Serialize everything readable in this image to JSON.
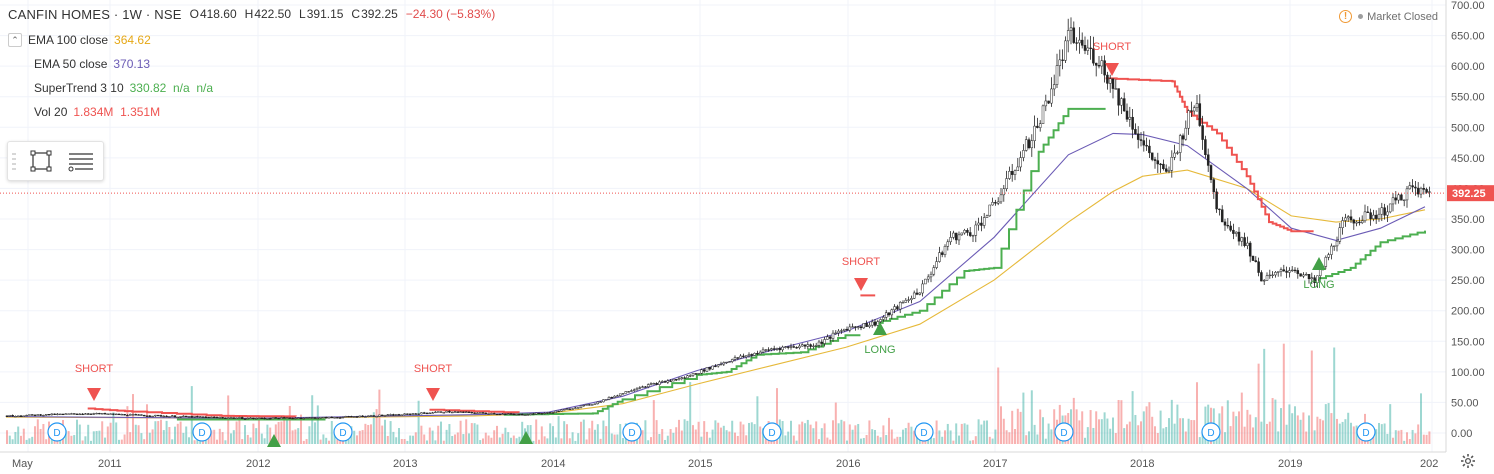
{
  "header": {
    "symbol": "CANFIN HOMES · 1W · NSE",
    "open_label": "O",
    "open": "418.60",
    "high_label": "H",
    "high": "422.50",
    "low_label": "L",
    "low": "391.15",
    "close_label": "C",
    "close": "392.25",
    "change": "−24.30 (−5.83%)"
  },
  "indicators": [
    {
      "name": "EMA 100 close",
      "value": "364.62",
      "color": "#e6a817"
    },
    {
      "name": "EMA 50 close",
      "value": "370.13",
      "color": "#6b5bb5"
    },
    {
      "name": "SuperTrend 3 10",
      "value": "330.82  n/a  n/a",
      "color": "#4caf50"
    },
    {
      "name": "Vol 20",
      "value": "1.834M  1.351M",
      "color": "#ef5350",
      "value2_color": "#f2a33a"
    }
  ],
  "market_status": "Market Closed",
  "price_axis": [
    "700.00",
    "650.00",
    "600.00",
    "550.00",
    "500.00",
    "450.00",
    "400.00",
    "350.00",
    "300.00",
    "250.00",
    "200.00",
    "150.00",
    "100.00",
    "50.00",
    "0.00"
  ],
  "last_price_tag": "392.25",
  "time_axis": [
    "May",
    "2011",
    "2012",
    "2013",
    "2014",
    "2015",
    "2016",
    "2017",
    "2018",
    "2019",
    "202"
  ],
  "signals": [
    {
      "type": "SHORT",
      "label": "SHORT"
    },
    {
      "type": "SHORT",
      "label": "SHORT"
    },
    {
      "type": "SHORT",
      "label": "SHORT"
    },
    {
      "type": "SHORT",
      "label": "SHORT"
    },
    {
      "type": "LONG",
      "label": "LONG"
    },
    {
      "type": "LONG",
      "label": "LONG"
    }
  ],
  "dividend_badge": "D",
  "chart_data": {
    "type": "candlestick",
    "y_range": [
      0,
      700
    ],
    "last_close": 392.25,
    "price_path": [
      [
        2010.35,
        28
      ],
      [
        2010.9,
        32
      ],
      [
        2011.5,
        27
      ],
      [
        2012.0,
        24
      ],
      [
        2012.5,
        25
      ],
      [
        2013.0,
        30
      ],
      [
        2013.3,
        35
      ],
      [
        2013.8,
        30
      ],
      [
        2014.0,
        33
      ],
      [
        2014.3,
        48
      ],
      [
        2014.6,
        75
      ],
      [
        2014.9,
        90
      ],
      [
        2015.2,
        118
      ],
      [
        2015.5,
        138
      ],
      [
        2015.8,
        145
      ],
      [
        2016.0,
        172
      ],
      [
        2016.2,
        180
      ],
      [
        2016.5,
        235
      ],
      [
        2016.7,
        320
      ],
      [
        2016.85,
        330
      ],
      [
        2017.0,
        375
      ],
      [
        2017.3,
        510
      ],
      [
        2017.5,
        650
      ],
      [
        2017.7,
        610
      ],
      [
        2017.85,
        540
      ],
      [
        2018.0,
        470
      ],
      [
        2018.15,
        420
      ],
      [
        2018.35,
        545
      ],
      [
        2018.5,
        360
      ],
      [
        2018.7,
        305
      ],
      [
        2018.8,
        250
      ],
      [
        2019.0,
        270
      ],
      [
        2019.15,
        245
      ],
      [
        2019.35,
        345
      ],
      [
        2019.6,
        360
      ],
      [
        2019.8,
        400
      ],
      [
        2019.9,
        392
      ]
    ],
    "ema50_path": [
      [
        2010.35,
        27
      ],
      [
        2012.0,
        24
      ],
      [
        2013.5,
        30
      ],
      [
        2014.0,
        34
      ],
      [
        2014.5,
        60
      ],
      [
        2015.0,
        102
      ],
      [
        2015.5,
        135
      ],
      [
        2016.0,
        166
      ],
      [
        2016.5,
        215
      ],
      [
        2017.0,
        320
      ],
      [
        2017.5,
        455
      ],
      [
        2017.8,
        490
      ],
      [
        2018.0,
        488
      ],
      [
        2018.3,
        470
      ],
      [
        2018.7,
        400
      ],
      [
        2019.0,
        335
      ],
      [
        2019.3,
        315
      ],
      [
        2019.6,
        335
      ],
      [
        2019.9,
        370
      ]
    ],
    "ema100_path": [
      [
        2010.35,
        26
      ],
      [
        2012.0,
        24
      ],
      [
        2013.5,
        28
      ],
      [
        2014.0,
        32
      ],
      [
        2014.5,
        48
      ],
      [
        2015.0,
        80
      ],
      [
        2015.5,
        110
      ],
      [
        2016.0,
        140
      ],
      [
        2016.5,
        178
      ],
      [
        2017.0,
        250
      ],
      [
        2017.5,
        345
      ],
      [
        2017.8,
        395
      ],
      [
        2018.0,
        420
      ],
      [
        2018.3,
        430
      ],
      [
        2018.7,
        400
      ],
      [
        2019.0,
        355
      ],
      [
        2019.3,
        345
      ],
      [
        2019.6,
        350
      ],
      [
        2019.9,
        365
      ]
    ],
    "supertrend_up_segments": [
      [
        [
          2011.5,
          22
        ],
        [
          2012.5,
          22
        ]
      ],
      [
        [
          2013.7,
          30
        ],
        [
          2014.3,
          32
        ],
        [
          2014.5,
          55
        ],
        [
          2015.0,
          95
        ],
        [
          2015.2,
          100
        ],
        [
          2015.4,
          128
        ],
        [
          2015.7,
          132
        ],
        [
          2016.0,
          160
        ],
        [
          2016.1,
          160
        ]
      ],
      [
        [
          2016.2,
          180
        ],
        [
          2016.5,
          200
        ],
        [
          2016.8,
          265
        ],
        [
          2017.0,
          270
        ],
        [
          2017.3,
          460
        ],
        [
          2017.5,
          530
        ],
        [
          2017.75,
          530
        ]
      ],
      [
        [
          2019.15,
          250
        ],
        [
          2019.4,
          270
        ],
        [
          2019.6,
          312
        ],
        [
          2019.9,
          331
        ]
      ]
    ],
    "supertrend_down_segments": [
      [
        [
          2010.9,
          40
        ],
        [
          2011.2,
          35
        ],
        [
          2011.8,
          28
        ],
        [
          2012.3,
          27
        ]
      ],
      [
        [
          2013.2,
          38
        ],
        [
          2013.8,
          33
        ]
      ],
      [
        [
          2016.1,
          225
        ],
        [
          2016.2,
          225
        ]
      ],
      [
        [
          2017.75,
          580
        ],
        [
          2018.2,
          575
        ],
        [
          2018.3,
          525
        ],
        [
          2018.5,
          490
        ],
        [
          2018.7,
          420
        ],
        [
          2018.85,
          345
        ],
        [
          2019.0,
          330
        ],
        [
          2019.15,
          330
        ]
      ]
    ],
    "volume_max_label": "150.00"
  }
}
